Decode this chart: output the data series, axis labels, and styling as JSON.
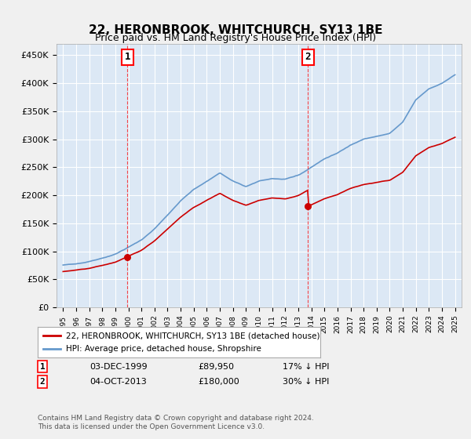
{
  "title": "22, HERONBROOK, WHITCHURCH, SY13 1BE",
  "subtitle": "Price paid vs. HM Land Registry's House Price Index (HPI)",
  "background_color": "#e8f0f8",
  "plot_bg_color": "#dce8f5",
  "grid_color": "#ffffff",
  "line1_color": "#cc0000",
  "line2_color": "#6699cc",
  "marker1_x": 1999.92,
  "marker1_y": 89950,
  "marker1_label": "1",
  "marker2_x": 2013.75,
  "marker2_y": 180000,
  "marker2_label": "2",
  "vline1_x": 1999.92,
  "vline2_x": 2013.75,
  "ylim_min": 0,
  "ylim_max": 470000,
  "xlim_min": 1994.5,
  "xlim_max": 2025.5,
  "yticks": [
    0,
    50000,
    100000,
    150000,
    200000,
    250000,
    300000,
    350000,
    400000,
    450000
  ],
  "ytick_labels": [
    "£0",
    "£50K",
    "£100K",
    "£150K",
    "£200K",
    "£250K",
    "£300K",
    "£350K",
    "£400K",
    "£450K"
  ],
  "xtick_years": [
    1995,
    1996,
    1997,
    1998,
    1999,
    2000,
    2001,
    2002,
    2003,
    2004,
    2005,
    2006,
    2007,
    2008,
    2009,
    2010,
    2011,
    2012,
    2013,
    2014,
    2015,
    2016,
    2017,
    2018,
    2019,
    2020,
    2021,
    2022,
    2023,
    2024,
    2025
  ],
  "legend_line1": "22, HERONBROOK, WHITCHURCH, SY13 1BE (detached house)",
  "legend_line2": "HPI: Average price, detached house, Shropshire",
  "annotation1_date": "03-DEC-1999",
  "annotation1_price": "£89,950",
  "annotation1_hpi": "17% ↓ HPI",
  "annotation2_date": "04-OCT-2013",
  "annotation2_price": "£180,000",
  "annotation2_hpi": "30% ↓ HPI",
  "footer": "Contains HM Land Registry data © Crown copyright and database right 2024.\nThis data is licensed under the Open Government Licence v3.0."
}
